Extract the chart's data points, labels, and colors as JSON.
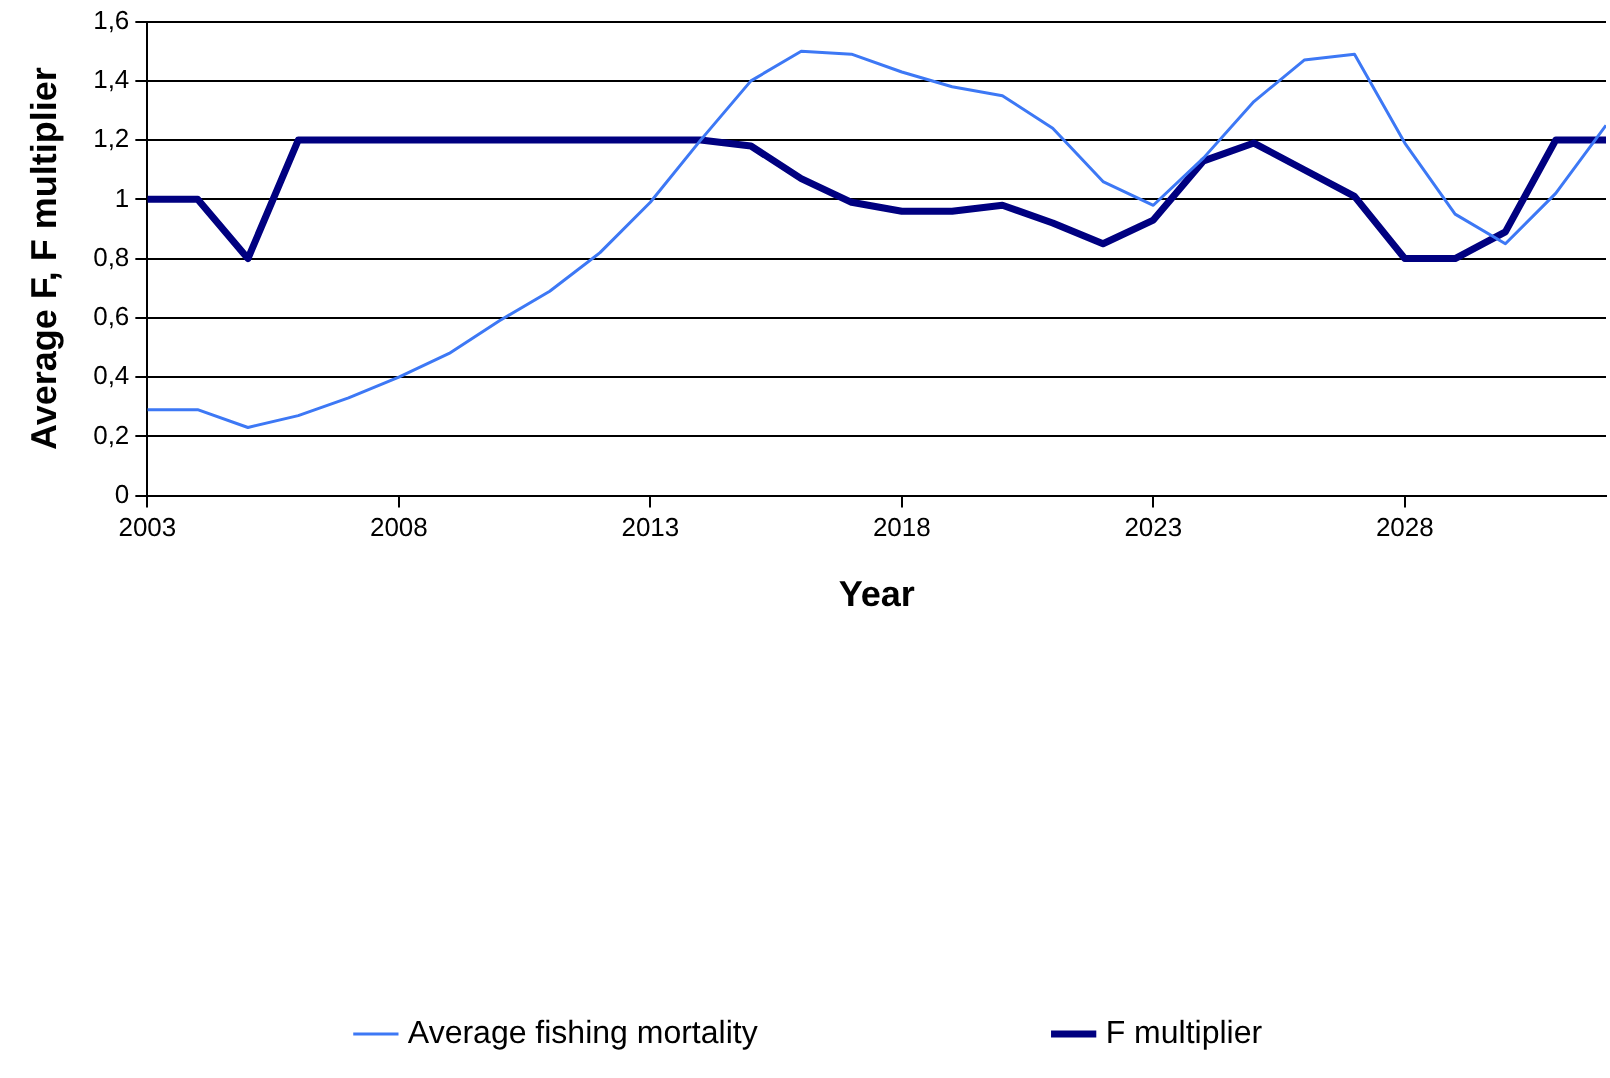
{
  "chart_data": {
    "type": "line",
    "xlabel": "Year",
    "ylabel": "Average F, F multiplier",
    "x": [
      2003,
      2004,
      2005,
      2006,
      2007,
      2008,
      2009,
      2010,
      2011,
      2012,
      2013,
      2014,
      2015,
      2016,
      2017,
      2018,
      2019,
      2020,
      2021,
      2022,
      2023,
      2024,
      2025,
      2026,
      2027,
      2028,
      2029,
      2030,
      2031,
      2032
    ],
    "series": [
      {
        "name": "Average fishing mortality",
        "color": "#3d78f5",
        "values": [
          0.29,
          0.29,
          0.23,
          0.27,
          0.33,
          0.4,
          0.48,
          0.59,
          0.69,
          0.82,
          0.99,
          1.2,
          1.4,
          1.5,
          1.49,
          1.43,
          1.38,
          1.35,
          1.24,
          1.06,
          0.98,
          1.14,
          1.33,
          1.47,
          1.49,
          1.19,
          0.95,
          0.85,
          1.02,
          1.25
        ]
      },
      {
        "name": "F multiplier",
        "color": "#000080",
        "values": [
          1,
          1,
          0.8,
          1.2,
          1.2,
          1.2,
          1.2,
          1.2,
          1.2,
          1.2,
          1.2,
          1.2,
          1.18,
          1.07,
          0.99,
          0.96,
          0.96,
          0.98,
          0.92,
          0.85,
          0.93,
          1.13,
          1.19,
          1.1,
          1.01,
          0.8,
          0.8,
          0.89,
          1.2,
          1.2
        ]
      }
    ],
    "xlim": [
      2003,
      2032
    ],
    "xticks": [
      2003,
      2008,
      2013,
      2018,
      2023,
      2028
    ],
    "ylim": [
      0,
      1.6
    ],
    "yticks": [
      {
        "value": 0,
        "label": "0"
      },
      {
        "value": 0.2,
        "label": "0,2"
      },
      {
        "value": 0.4,
        "label": "0,4"
      },
      {
        "value": 0.6,
        "label": "0,6"
      },
      {
        "value": 0.8,
        "label": "0,8"
      },
      {
        "value": 1,
        "label": "1"
      },
      {
        "value": 1.2,
        "label": "1,2"
      },
      {
        "value": 1.4,
        "label": "1,4"
      },
      {
        "value": 1.6,
        "label": "1,6"
      }
    ],
    "grid": "y",
    "legend": "bottom",
    "marker": "none",
    "line_style": "solid"
  }
}
